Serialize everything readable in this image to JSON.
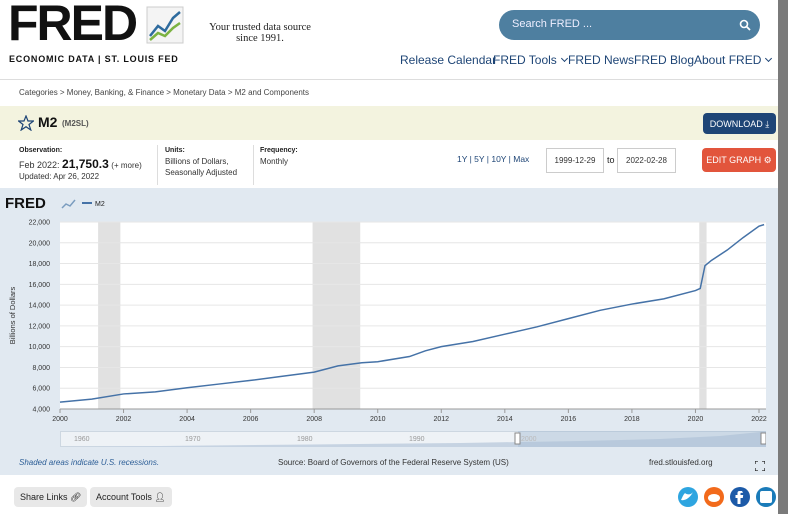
{
  "header": {
    "logo": "FRED",
    "subtitle": "ECONOMIC DATA  |  ST. LOUIS FED",
    "tagline_1": "Your trusted data source",
    "tagline_2": "since 1991.",
    "search_placeholder": "Search FRED ..."
  },
  "nav": [
    "Release Calendar",
    "FRED Tools",
    "FRED News",
    "FRED Blog",
    "About FRED"
  ],
  "breadcrumb": "Categories > Money, Banking, & Finance > Monetary Data > M2 and Components",
  "series_title": {
    "name": "M2",
    "id": "(M2SL)",
    "download": "DOWNLOAD"
  },
  "info": {
    "observation_label": "Observation:",
    "observation_date": "Feb 2022:",
    "observation_value": "21,750.3",
    "observation_more": "(+ more)",
    "updated": "Updated: Apr 26, 2022",
    "units_label": "Units:",
    "units_1": "Billions of Dollars,",
    "units_2": "Seasonally Adjusted",
    "frequency_label": "Frequency:",
    "frequency": "Monthly"
  },
  "controls": {
    "ranges": "1Y | 5Y | 10Y | Max",
    "date_start": "1999-12-29",
    "date_to": "to",
    "date_end": "2022-02-28",
    "edit_graph": "EDIT GRAPH"
  },
  "chart_data": {
    "type": "line",
    "logo": "FRED",
    "ylabel": "Billions of Dollars",
    "x": [
      2000,
      2001,
      2002,
      2003,
      2004,
      2005,
      2006,
      2007,
      2008,
      2008.75,
      2009.5,
      2010,
      2011,
      2011.5,
      2012,
      2013,
      2014,
      2015,
      2016,
      2017,
      2018,
      2019,
      2020,
      2020.15,
      2020.3,
      2020.5,
      2021,
      2021.5,
      2022,
      2022.16
    ],
    "series": [
      {
        "name": "M2",
        "color": "#4572a7",
        "values": [
          4660,
          4950,
          5450,
          5650,
          6050,
          6400,
          6750,
          7150,
          7550,
          8150,
          8450,
          8550,
          9050,
          9600,
          10000,
          10500,
          11200,
          11900,
          12700,
          13500,
          14100,
          14600,
          15400,
          15600,
          17800,
          18300,
          19300,
          20500,
          21600,
          21750
        ]
      }
    ],
    "recessions": [
      [
        2001.2,
        2001.9
      ],
      [
        2007.95,
        2009.45
      ],
      [
        2020.12,
        2020.35
      ]
    ],
    "xlim": [
      2000,
      2022.22
    ],
    "ylim": [
      4000,
      22000
    ],
    "xticks": [
      2000,
      2002,
      2004,
      2006,
      2008,
      2010,
      2012,
      2014,
      2016,
      2018,
      2020,
      2022
    ],
    "yticks": [
      {
        "value": 4000,
        "label": "4,000"
      },
      {
        "value": 6000,
        "label": "6,000"
      },
      {
        "value": 8000,
        "label": "8,000"
      },
      {
        "value": 10000,
        "label": "10,000"
      },
      {
        "value": 12000,
        "label": "12,000"
      },
      {
        "value": 14000,
        "label": "14,000"
      },
      {
        "value": 16000,
        "label": "16,000"
      },
      {
        "value": 18000,
        "label": "18,000"
      },
      {
        "value": 20000,
        "label": "20,000"
      },
      {
        "value": 22000,
        "label": "22,000"
      }
    ],
    "grid": true,
    "recession_color": "#e1e1e1"
  },
  "navigator": [
    "1960",
    "1970",
    "1980",
    "1990",
    "2000"
  ],
  "footer": {
    "recession_note": "Shaded areas indicate U.S. recessions.",
    "source": "Source: Board of Governors of the Federal Reserve System (US)",
    "site": "fred.stlouisfed.org"
  },
  "bottom": {
    "share": "Share Links",
    "account": "Account Tools"
  }
}
